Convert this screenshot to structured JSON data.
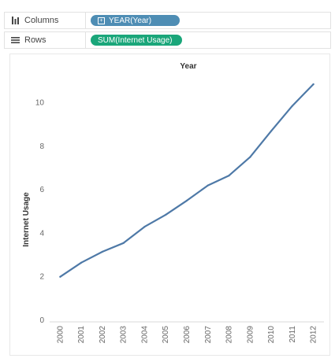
{
  "shelves": {
    "columns": {
      "label": "Columns",
      "icon": "columns-icon",
      "pill": "YEAR(Year)",
      "pill_color": "#4e8db4"
    },
    "rows": {
      "label": "Rows",
      "icon": "rows-icon",
      "pill": "SUM(Internet Usage)",
      "pill_color": "#1aa67a"
    }
  },
  "chart_data": {
    "type": "line",
    "title": "Year",
    "xlabel": "",
    "ylabel": "Internet Usage",
    "categories": [
      "2000",
      "2001",
      "2002",
      "2003",
      "2004",
      "2005",
      "2006",
      "2007",
      "2008",
      "2009",
      "2010",
      "2011",
      "2012"
    ],
    "series": [
      {
        "values": [
          2.0,
          2.65,
          3.15,
          3.55,
          4.3,
          4.85,
          5.5,
          6.2,
          6.65,
          7.5,
          8.7,
          9.85,
          10.85
        ]
      }
    ],
    "ylim": [
      0,
      11.5
    ],
    "yticks": [
      0,
      2,
      4,
      6,
      8,
      10
    ],
    "line_color": "#4e79a7",
    "grid": false
  }
}
